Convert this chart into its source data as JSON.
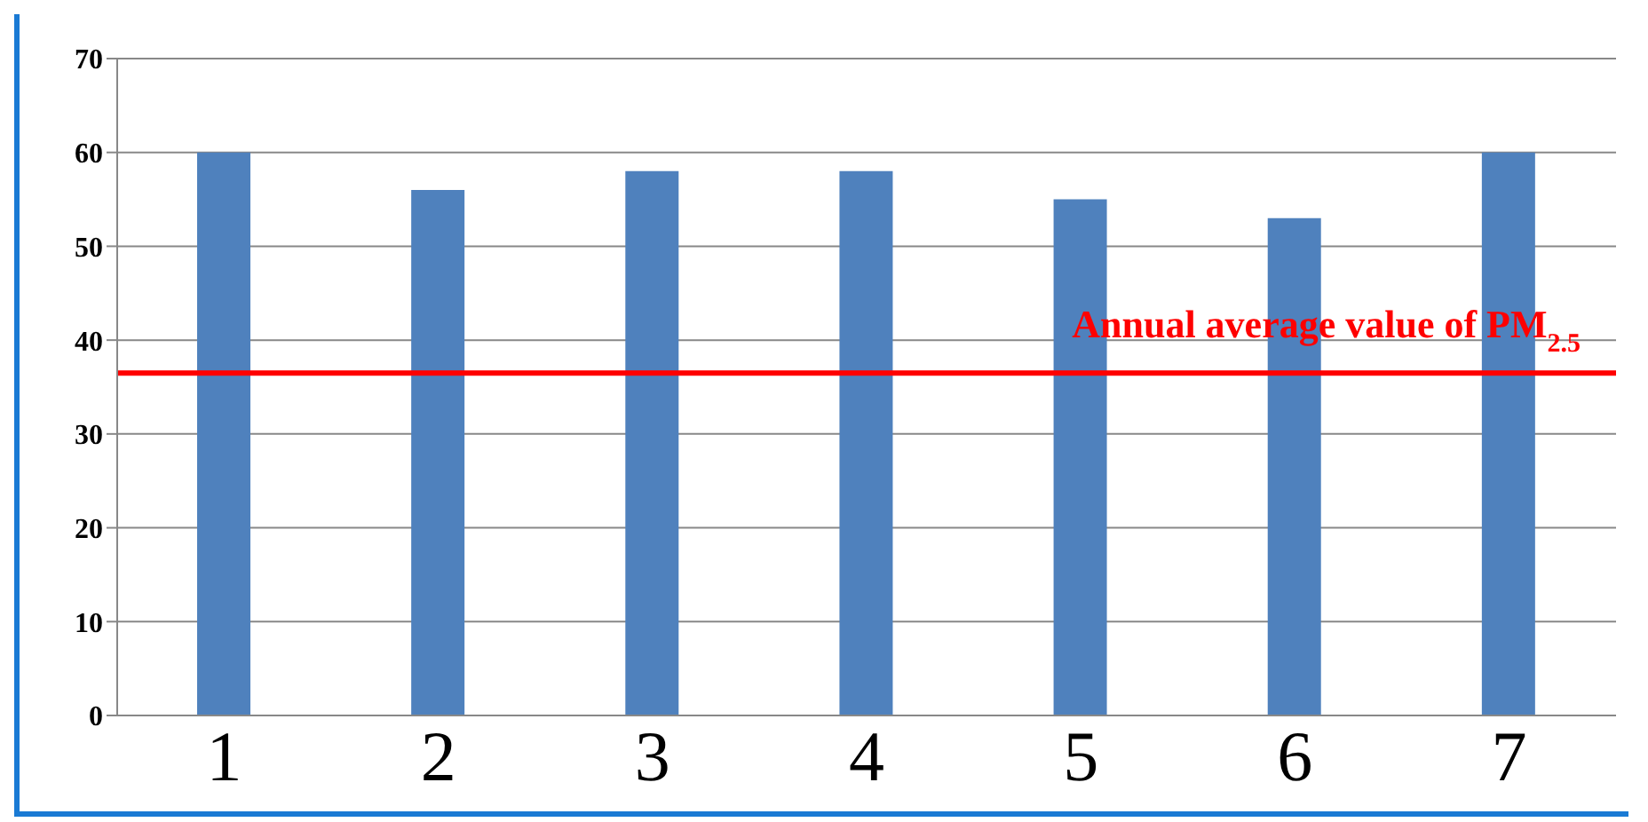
{
  "chart_data": {
    "type": "bar",
    "categories": [
      "1",
      "2",
      "3",
      "4",
      "5",
      "6",
      "7"
    ],
    "values": [
      60,
      56,
      58,
      58,
      55,
      53,
      60
    ],
    "color": "#4f81bd",
    "ylim": [
      0,
      70
    ],
    "yticks": [
      0,
      10,
      20,
      30,
      40,
      50,
      60,
      70
    ],
    "grid": "y",
    "ref_lines": [
      {
        "axis": "y",
        "value": 36.5,
        "label": "Annual average value of PM$_{2.5}$",
        "color": "#ff0000"
      }
    ]
  }
}
